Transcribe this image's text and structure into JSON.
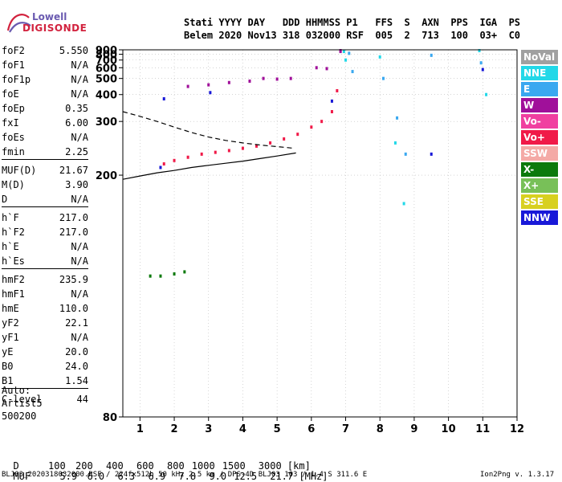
{
  "logo": {
    "top": "Lowell",
    "bottom": "DIGISONDE"
  },
  "header": {
    "line1": "Stati YYYY DAY   DDD HHMMSS P1   FFS  S  AXN  PPS  IGA  PS",
    "line2": "Belem 2020 Nov13 318 032000 RSF  005  2  713  100  03+  C0"
  },
  "params": [
    {
      "label": "foF2",
      "value": "5.550"
    },
    {
      "label": "foF1",
      "value": "N/A"
    },
    {
      "label": "foF1p",
      "value": "N/A"
    },
    {
      "label": "foE",
      "value": "N/A"
    },
    {
      "label": "foEp",
      "value": "0.35"
    },
    {
      "label": "fxI",
      "value": "6.00"
    },
    {
      "label": "foEs",
      "value": "N/A"
    },
    {
      "label": "fmin",
      "value": "2.25"
    },
    {
      "label": "MUF(D)",
      "value": "21.67"
    },
    {
      "label": "M(D)",
      "value": "3.90"
    },
    {
      "label": "D",
      "value": "N/A"
    },
    {
      "label": "h`F",
      "value": "217.0"
    },
    {
      "label": "h`F2",
      "value": "217.0"
    },
    {
      "label": "h`E",
      "value": "N/A"
    },
    {
      "label": "h`Es",
      "value": "N/A"
    },
    {
      "label": "hmF2",
      "value": "235.9"
    },
    {
      "label": "hmF1",
      "value": "N/A"
    },
    {
      "label": "hmE",
      "value": "110.0"
    },
    {
      "label": "yF2",
      "value": "22.1"
    },
    {
      "label": "yF1",
      "value": "N/A"
    },
    {
      "label": "yE",
      "value": "20.0"
    },
    {
      "label": "B0",
      "value": "24.0"
    },
    {
      "label": "B1",
      "value": "1.54"
    },
    {
      "label": "C-level",
      "value": "44"
    }
  ],
  "autoscaling": {
    "line1": "Auto:",
    "line2": "Artist5",
    "line3": "500200"
  },
  "legend": [
    {
      "label": "NoVal",
      "color": "#a0a0a0"
    },
    {
      "label": "NNE",
      "color": "#22d8e8"
    },
    {
      "label": "E",
      "color": "#3aa8f0"
    },
    {
      "label": "W",
      "color": "#a0109a"
    },
    {
      "label": "Vo-",
      "color": "#f040a0"
    },
    {
      "label": "Vo+",
      "color": "#f01a48"
    },
    {
      "label": "SSW",
      "color": "#f4aaa6"
    },
    {
      "label": "X-",
      "color": "#0c7a0c"
    },
    {
      "label": "X+",
      "color": "#78c058"
    },
    {
      "label": "SSE",
      "color": "#d8d020"
    },
    {
      "label": "NNW",
      "color": "#1818d8"
    }
  ],
  "muf_table": {
    "d_label": "D",
    "d_values": [
      "100",
      "200",
      "400",
      "600",
      "800",
      "1000",
      "1500",
      "3000"
    ],
    "d_unit": "[km]",
    "muf_label": "MUF",
    "muf_values": [
      "5.9",
      "6.0",
      "6.3",
      "6.9",
      "7.8",
      "9.0",
      "12.5",
      "21.7"
    ],
    "muf_unit": "[MHz]"
  },
  "footer": {
    "left": "BLJ03_2020318032000.RSF / 224fx512h 50 kHz 2.5 km / DPS-4D BLJ03 103 / 1.4 S 311.6 E",
    "right": "Ion2Png v. 1.3.17"
  },
  "chart_data": {
    "type": "scatter",
    "xlim": [
      0.5,
      12
    ],
    "ylim": [
      80,
      900
    ],
    "xticks": [
      "1",
      "2",
      "3",
      "4",
      "5",
      "6",
      "7",
      "8",
      "9",
      "10",
      "11",
      "12"
    ],
    "yticks": [
      "80",
      "200",
      "300",
      "400",
      "500",
      "600",
      "700",
      "800",
      "900"
    ],
    "grid": true,
    "y_scale": "reciprocal",
    "series": [
      {
        "color": "#f01a48",
        "x": [
          1.7,
          2.0,
          2.4,
          2.8,
          3.2,
          3.6,
          4.0,
          4.4,
          4.8,
          5.2,
          5.6,
          6.0,
          6.3,
          6.6,
          6.75
        ],
        "y": [
          215,
          220,
          225,
          230,
          233,
          236,
          240,
          244,
          250,
          258,
          268,
          285,
          300,
          330,
          420
        ]
      },
      {
        "color": "#a0109a",
        "x": [
          2.4,
          3.0,
          3.6,
          4.2,
          4.6,
          5.0,
          5.4,
          6.15,
          6.45,
          6.85,
          6.85
        ],
        "y": [
          445,
          455,
          470,
          480,
          500,
          495,
          500,
          600,
          590,
          860,
          880
        ]
      },
      {
        "color": "#3aa8f0",
        "x": [
          7.1,
          7.2,
          8.1,
          8.5,
          8.75,
          9.5,
          10.95
        ],
        "y": [
          820,
          560,
          500,
          310,
          230,
          780,
          660
        ]
      },
      {
        "color": "#22d8e8",
        "x": [
          6.95,
          7.0,
          8.0,
          8.45,
          8.7,
          10.9,
          11.1
        ],
        "y": [
          860,
          700,
          750,
          250,
          170,
          880,
          400
        ]
      },
      {
        "color": "#0c7a0c",
        "x": [
          1.3,
          1.6,
          2.0,
          2.3
        ],
        "y": [
          123,
          123,
          124,
          125
        ]
      },
      {
        "color": "#1818d8",
        "x": [
          1.6,
          1.7,
          3.05,
          6.6,
          9.5,
          11.0
        ],
        "y": [
          210,
          380,
          410,
          370,
          230,
          580
        ]
      }
    ],
    "lines": [
      {
        "style": "solid",
        "x": [
          0.5,
          1.0,
          1.5,
          2.0,
          2.5,
          3.0,
          3.5,
          4.0,
          4.5,
          5.0,
          5.55
        ],
        "y": [
          195,
          199,
          203,
          206,
          210,
          213,
          216,
          219,
          223,
          227,
          232
        ]
      },
      {
        "style": "dashed",
        "x": [
          0.5,
          1.0,
          1.5,
          2.0,
          2.5,
          3.0,
          3.5,
          4.0,
          4.5,
          5.0,
          5.5
        ],
        "y": [
          330,
          315,
          300,
          285,
          272,
          262,
          255,
          250,
          246,
          243,
          240
        ]
      }
    ]
  }
}
